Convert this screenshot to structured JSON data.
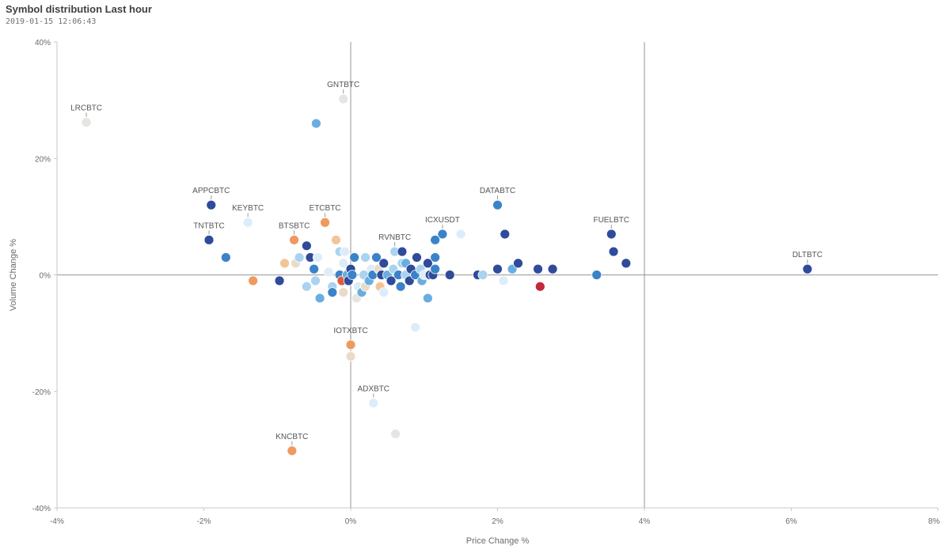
{
  "header": {
    "title": "Symbol distribution Last hour",
    "timestamp": "2019-01-15 12:06:43"
  },
  "chart_data": {
    "type": "scatter",
    "title": "Symbol distribution Last hour",
    "xlabel": "Price Change %",
    "ylabel": "Volume Change %",
    "xlim": [
      -4,
      8
    ],
    "ylim": [
      -40,
      40
    ],
    "x_ticks": [
      -4,
      -2,
      0,
      2,
      4,
      6,
      8
    ],
    "y_ticks": [
      40,
      20,
      0,
      -20,
      -40
    ],
    "x_tick_labels": [
      "-4%",
      "-2%",
      "0%",
      "2%",
      "4%",
      "6%",
      "8%"
    ],
    "y_tick_labels": [
      "40%",
      "20%",
      "0%",
      "-20%",
      "-40%"
    ],
    "reference_lines": {
      "x": [
        0,
        4
      ],
      "y": [
        0
      ]
    },
    "colors": {
      "navy": "#2f4b9a",
      "blue": "#3b83c9",
      "mid": "#68aee0",
      "light": "#a9d3f0",
      "pale": "#dcedf9",
      "grey": "#e5e5e1",
      "beige": "#eadbc9",
      "peach": "#f3c497",
      "orange": "#ef9a5f",
      "red": "#e05a3c",
      "crimson": "#c4273b"
    },
    "points": [
      {
        "name": "LRCBTC",
        "x": -3.6,
        "y": 26.2,
        "color": "grey",
        "label": true
      },
      {
        "name": "GNTBTC",
        "x": -0.1,
        "y": 30.2,
        "color": "grey",
        "label": true
      },
      {
        "name": "APPCBTC",
        "x": -1.9,
        "y": 12.0,
        "color": "navy",
        "label": true
      },
      {
        "name": "TNTBTC",
        "x": -1.93,
        "y": 6.0,
        "color": "navy",
        "label": true
      },
      {
        "name": "KEYBTC",
        "x": -1.4,
        "y": 9.0,
        "color": "pale",
        "label": true
      },
      {
        "name": "BTSBTC",
        "x": -0.77,
        "y": 6.0,
        "color": "orange",
        "label": true
      },
      {
        "name": "ETCBTC",
        "x": -0.35,
        "y": 9.0,
        "color": "orange",
        "label": true
      },
      {
        "name": "DATABTC",
        "x": 2.0,
        "y": 12.0,
        "color": "blue",
        "label": true
      },
      {
        "name": "ICXUSDT",
        "x": 1.25,
        "y": 7.0,
        "color": "blue",
        "label": true
      },
      {
        "name": "RVNBTC",
        "x": 0.6,
        "y": 4.0,
        "color": "light",
        "label": true
      },
      {
        "name": "FUELBTC",
        "x": 3.55,
        "y": 7.0,
        "color": "navy",
        "label": true
      },
      {
        "name": "DLTBTC",
        "x": 6.22,
        "y": 1.0,
        "color": "navy",
        "label": true
      },
      {
        "name": "IOTXBTC",
        "x": 0.0,
        "y": -12.0,
        "color": "orange",
        "label": true
      },
      {
        "name": "ADXBTC",
        "x": 0.31,
        "y": -22.0,
        "color": "pale",
        "label": true
      },
      {
        "name": "KNCBTC",
        "x": -0.8,
        "y": -30.2,
        "color": "orange",
        "label": true
      },
      {
        "name": "",
        "x": -0.47,
        "y": 26.0,
        "color": "mid",
        "label": false
      },
      {
        "name": "",
        "x": -1.7,
        "y": 3.0,
        "color": "blue",
        "label": false
      },
      {
        "name": "",
        "x": -1.33,
        "y": -1.0,
        "color": "orange",
        "label": false
      },
      {
        "name": "",
        "x": -0.97,
        "y": -1.0,
        "color": "navy",
        "label": false
      },
      {
        "name": "",
        "x": -0.9,
        "y": 2.0,
        "color": "peach",
        "label": false
      },
      {
        "name": "",
        "x": -0.75,
        "y": 2.0,
        "color": "beige",
        "label": false
      },
      {
        "name": "",
        "x": -0.7,
        "y": 3.0,
        "color": "light",
        "label": false
      },
      {
        "name": "",
        "x": -0.6,
        "y": 5.0,
        "color": "navy",
        "label": false
      },
      {
        "name": "",
        "x": -0.55,
        "y": 3.0,
        "color": "navy",
        "label": false
      },
      {
        "name": "",
        "x": -0.5,
        "y": 1.0,
        "color": "blue",
        "label": false
      },
      {
        "name": "",
        "x": -0.45,
        "y": 3.0,
        "color": "pale",
        "label": false
      },
      {
        "name": "",
        "x": -0.48,
        "y": -1.0,
        "color": "light",
        "label": false
      },
      {
        "name": "",
        "x": -0.6,
        "y": -2.0,
        "color": "light",
        "label": false
      },
      {
        "name": "",
        "x": -0.42,
        "y": -4.0,
        "color": "mid",
        "label": false
      },
      {
        "name": "",
        "x": -0.3,
        "y": 0.5,
        "color": "pale",
        "label": false
      },
      {
        "name": "",
        "x": -0.25,
        "y": -2.0,
        "color": "light",
        "label": false
      },
      {
        "name": "",
        "x": -0.25,
        "y": -3.0,
        "color": "blue",
        "label": false
      },
      {
        "name": "",
        "x": -0.2,
        "y": 6.0,
        "color": "peach",
        "label": false
      },
      {
        "name": "",
        "x": -0.15,
        "y": 4.0,
        "color": "light",
        "label": false
      },
      {
        "name": "",
        "x": -0.1,
        "y": 2.0,
        "color": "pale",
        "label": false
      },
      {
        "name": "",
        "x": -0.15,
        "y": 0.0,
        "color": "blue",
        "label": false
      },
      {
        "name": "",
        "x": -0.12,
        "y": -1.0,
        "color": "red",
        "label": false
      },
      {
        "name": "",
        "x": -0.1,
        "y": -3.0,
        "color": "beige",
        "label": false
      },
      {
        "name": "",
        "x": -0.08,
        "y": 4.0,
        "color": "pale",
        "label": false
      },
      {
        "name": "",
        "x": -0.05,
        "y": 0.0,
        "color": "mid",
        "label": false
      },
      {
        "name": "",
        "x": -0.03,
        "y": -1.0,
        "color": "navy",
        "label": false
      },
      {
        "name": "",
        "x": 0.0,
        "y": 1.0,
        "color": "navy",
        "label": false
      },
      {
        "name": "",
        "x": 0.02,
        "y": 0.0,
        "color": "blue",
        "label": false
      },
      {
        "name": "",
        "x": 0.05,
        "y": 3.0,
        "color": "blue",
        "label": false
      },
      {
        "name": "",
        "x": 0.08,
        "y": -4.0,
        "color": "grey",
        "label": false
      },
      {
        "name": "",
        "x": 0.1,
        "y": -2.0,
        "color": "pale",
        "label": false
      },
      {
        "name": "",
        "x": 0.15,
        "y": -3.0,
        "color": "mid",
        "label": false
      },
      {
        "name": "",
        "x": 0.18,
        "y": 0.0,
        "color": "light",
        "label": false
      },
      {
        "name": "",
        "x": 0.2,
        "y": 3.0,
        "color": "light",
        "label": false
      },
      {
        "name": "",
        "x": 0.2,
        "y": -2.0,
        "color": "beige",
        "label": false
      },
      {
        "name": "",
        "x": 0.25,
        "y": -1.0,
        "color": "mid",
        "label": false
      },
      {
        "name": "",
        "x": 0.28,
        "y": 1.0,
        "color": "pale",
        "label": false
      },
      {
        "name": "",
        "x": 0.3,
        "y": 0.0,
        "color": "blue",
        "label": false
      },
      {
        "name": "",
        "x": 0.35,
        "y": 3.0,
        "color": "blue",
        "label": false
      },
      {
        "name": "",
        "x": 0.38,
        "y": 1.0,
        "color": "beige",
        "label": false
      },
      {
        "name": "",
        "x": 0.4,
        "y": -2.0,
        "color": "peach",
        "label": false
      },
      {
        "name": "",
        "x": 0.42,
        "y": 0.0,
        "color": "navy",
        "label": false
      },
      {
        "name": "",
        "x": 0.45,
        "y": 2.0,
        "color": "navy",
        "label": false
      },
      {
        "name": "",
        "x": 0.45,
        "y": -3.0,
        "color": "pale",
        "label": false
      },
      {
        "name": "",
        "x": 0.5,
        "y": 0.0,
        "color": "mid",
        "label": false
      },
      {
        "name": "",
        "x": 0.55,
        "y": -1.0,
        "color": "navy",
        "label": false
      },
      {
        "name": "",
        "x": 0.58,
        "y": 1.0,
        "color": "light",
        "label": false
      },
      {
        "name": "",
        "x": 0.65,
        "y": 0.0,
        "color": "blue",
        "label": false
      },
      {
        "name": "",
        "x": 0.7,
        "y": 4.0,
        "color": "navy",
        "label": false
      },
      {
        "name": "",
        "x": 0.7,
        "y": 2.0,
        "color": "light",
        "label": false
      },
      {
        "name": "",
        "x": 0.68,
        "y": -2.0,
        "color": "blue",
        "label": false
      },
      {
        "name": "",
        "x": 0.75,
        "y": 0.0,
        "color": "light",
        "label": false
      },
      {
        "name": "",
        "x": 0.75,
        "y": 2.0,
        "color": "mid",
        "label": false
      },
      {
        "name": "",
        "x": 0.8,
        "y": -1.0,
        "color": "navy",
        "label": false
      },
      {
        "name": "",
        "x": 0.82,
        "y": 1.0,
        "color": "navy",
        "label": false
      },
      {
        "name": "",
        "x": 0.88,
        "y": 0.0,
        "color": "blue",
        "label": false
      },
      {
        "name": "",
        "x": 0.9,
        "y": 3.0,
        "color": "navy",
        "label": false
      },
      {
        "name": "",
        "x": 0.95,
        "y": 1.0,
        "color": "light",
        "label": false
      },
      {
        "name": "",
        "x": 0.97,
        "y": -1.0,
        "color": "mid",
        "label": false
      },
      {
        "name": "",
        "x": 1.0,
        "y": 0.0,
        "color": "pale",
        "label": false
      },
      {
        "name": "",
        "x": 1.05,
        "y": 2.0,
        "color": "navy",
        "label": false
      },
      {
        "name": "",
        "x": 1.08,
        "y": 0.0,
        "color": "navy",
        "label": false
      },
      {
        "name": "",
        "x": 1.05,
        "y": -4.0,
        "color": "mid",
        "label": false
      },
      {
        "name": "",
        "x": 1.12,
        "y": 0.0,
        "color": "navy",
        "label": false
      },
      {
        "name": "",
        "x": 1.15,
        "y": 1.0,
        "color": "blue",
        "label": false
      },
      {
        "name": "",
        "x": 1.15,
        "y": 3.0,
        "color": "blue",
        "label": false
      },
      {
        "name": "",
        "x": 1.15,
        "y": 6.0,
        "color": "blue",
        "label": false
      },
      {
        "name": "",
        "x": 1.35,
        "y": 0.0,
        "color": "navy",
        "label": false
      },
      {
        "name": "",
        "x": 1.5,
        "y": 7.0,
        "color": "pale",
        "label": false
      },
      {
        "name": "",
        "x": 0.88,
        "y": -9.0,
        "color": "pale",
        "label": false
      },
      {
        "name": "",
        "x": 0.0,
        "y": -14.0,
        "color": "beige",
        "label": false
      },
      {
        "name": "",
        "x": 0.61,
        "y": -27.3,
        "color": "grey",
        "label": false
      },
      {
        "name": "",
        "x": 1.73,
        "y": 0.0,
        "color": "navy",
        "label": false
      },
      {
        "name": "",
        "x": 1.8,
        "y": 0.0,
        "color": "light",
        "label": false
      },
      {
        "name": "",
        "x": 2.1,
        "y": 7.0,
        "color": "navy",
        "label": false
      },
      {
        "name": "",
        "x": 2.0,
        "y": 1.0,
        "color": "navy",
        "label": false
      },
      {
        "name": "",
        "x": 2.08,
        "y": -1.0,
        "color": "pale",
        "label": false
      },
      {
        "name": "",
        "x": 2.2,
        "y": 1.0,
        "color": "mid",
        "label": false
      },
      {
        "name": "",
        "x": 2.28,
        "y": 2.0,
        "color": "navy",
        "label": false
      },
      {
        "name": "",
        "x": 2.55,
        "y": 1.0,
        "color": "navy",
        "label": false
      },
      {
        "name": "",
        "x": 2.58,
        "y": -2.0,
        "color": "crimson",
        "label": false
      },
      {
        "name": "",
        "x": 2.75,
        "y": 1.0,
        "color": "navy",
        "label": false
      },
      {
        "name": "",
        "x": 3.35,
        "y": 0.0,
        "color": "blue",
        "label": false
      },
      {
        "name": "",
        "x": 3.58,
        "y": 4.0,
        "color": "navy",
        "label": false
      },
      {
        "name": "",
        "x": 3.75,
        "y": 2.0,
        "color": "navy",
        "label": false
      }
    ]
  }
}
